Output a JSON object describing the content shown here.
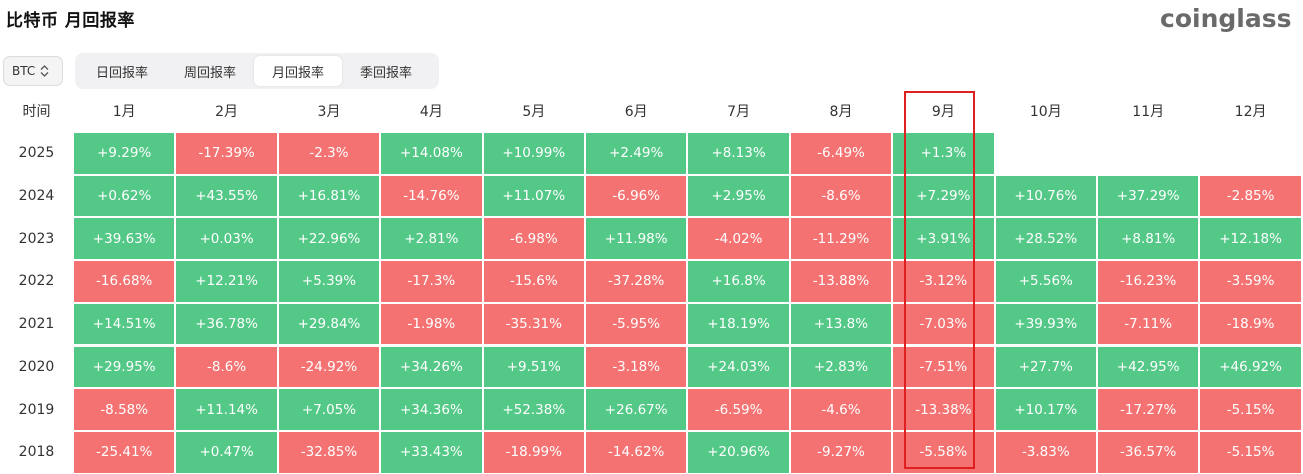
{
  "page": {
    "title": "比特币 月回报率",
    "logo": "coinglass"
  },
  "controls": {
    "coin": "BTC",
    "tabs": [
      {
        "label": "日回报率",
        "active": false
      },
      {
        "label": "周回报率",
        "active": false
      },
      {
        "label": "月回报率",
        "active": true
      },
      {
        "label": "季回报率",
        "active": false
      }
    ]
  },
  "colors": {
    "positive": "#53c887",
    "negative": "#f47272",
    "highlight": "#e02020"
  },
  "chart_data": {
    "type": "heatmap",
    "row_header": "时间",
    "columns": [
      "1月",
      "2月",
      "3月",
      "4月",
      "5月",
      "6月",
      "7月",
      "8月",
      "9月",
      "10月",
      "11月",
      "12月"
    ],
    "highlighted_column": "9月",
    "rows": [
      {
        "year": "2025",
        "values": [
          "+9.29%",
          "-17.39%",
          "-2.3%",
          "+14.08%",
          "+10.99%",
          "+2.49%",
          "+8.13%",
          "-6.49%",
          "+1.3%",
          null,
          null,
          null
        ]
      },
      {
        "year": "2024",
        "values": [
          "+0.62%",
          "+43.55%",
          "+16.81%",
          "-14.76%",
          "+11.07%",
          "-6.96%",
          "+2.95%",
          "-8.6%",
          "+7.29%",
          "+10.76%",
          "+37.29%",
          "-2.85%"
        ]
      },
      {
        "year": "2023",
        "values": [
          "+39.63%",
          "+0.03%",
          "+22.96%",
          "+2.81%",
          "-6.98%",
          "+11.98%",
          "-4.02%",
          "-11.29%",
          "+3.91%",
          "+28.52%",
          "+8.81%",
          "+12.18%"
        ]
      },
      {
        "year": "2022",
        "values": [
          "-16.68%",
          "+12.21%",
          "+5.39%",
          "-17.3%",
          "-15.6%",
          "-37.28%",
          "+16.8%",
          "-13.88%",
          "-3.12%",
          "+5.56%",
          "-16.23%",
          "-3.59%"
        ]
      },
      {
        "year": "2021",
        "values": [
          "+14.51%",
          "+36.78%",
          "+29.84%",
          "-1.98%",
          "-35.31%",
          "-5.95%",
          "+18.19%",
          "+13.8%",
          "-7.03%",
          "+39.93%",
          "-7.11%",
          "-18.9%"
        ]
      },
      {
        "year": "2020",
        "values": [
          "+29.95%",
          "-8.6%",
          "-24.92%",
          "+34.26%",
          "+9.51%",
          "-3.18%",
          "+24.03%",
          "+2.83%",
          "-7.51%",
          "+27.7%",
          "+42.95%",
          "+46.92%"
        ]
      },
      {
        "year": "2019",
        "values": [
          "-8.58%",
          "+11.14%",
          "+7.05%",
          "+34.36%",
          "+52.38%",
          "+26.67%",
          "-6.59%",
          "-4.6%",
          "-13.38%",
          "+10.17%",
          "-17.27%",
          "-5.15%"
        ]
      },
      {
        "year": "2018",
        "values": [
          "-25.41%",
          "+0.47%",
          "-32.85%",
          "+33.43%",
          "-18.99%",
          "-14.62%",
          "+20.96%",
          "-9.27%",
          "-5.58%",
          "-3.83%",
          "-36.57%",
          "-5.15%"
        ]
      }
    ]
  }
}
